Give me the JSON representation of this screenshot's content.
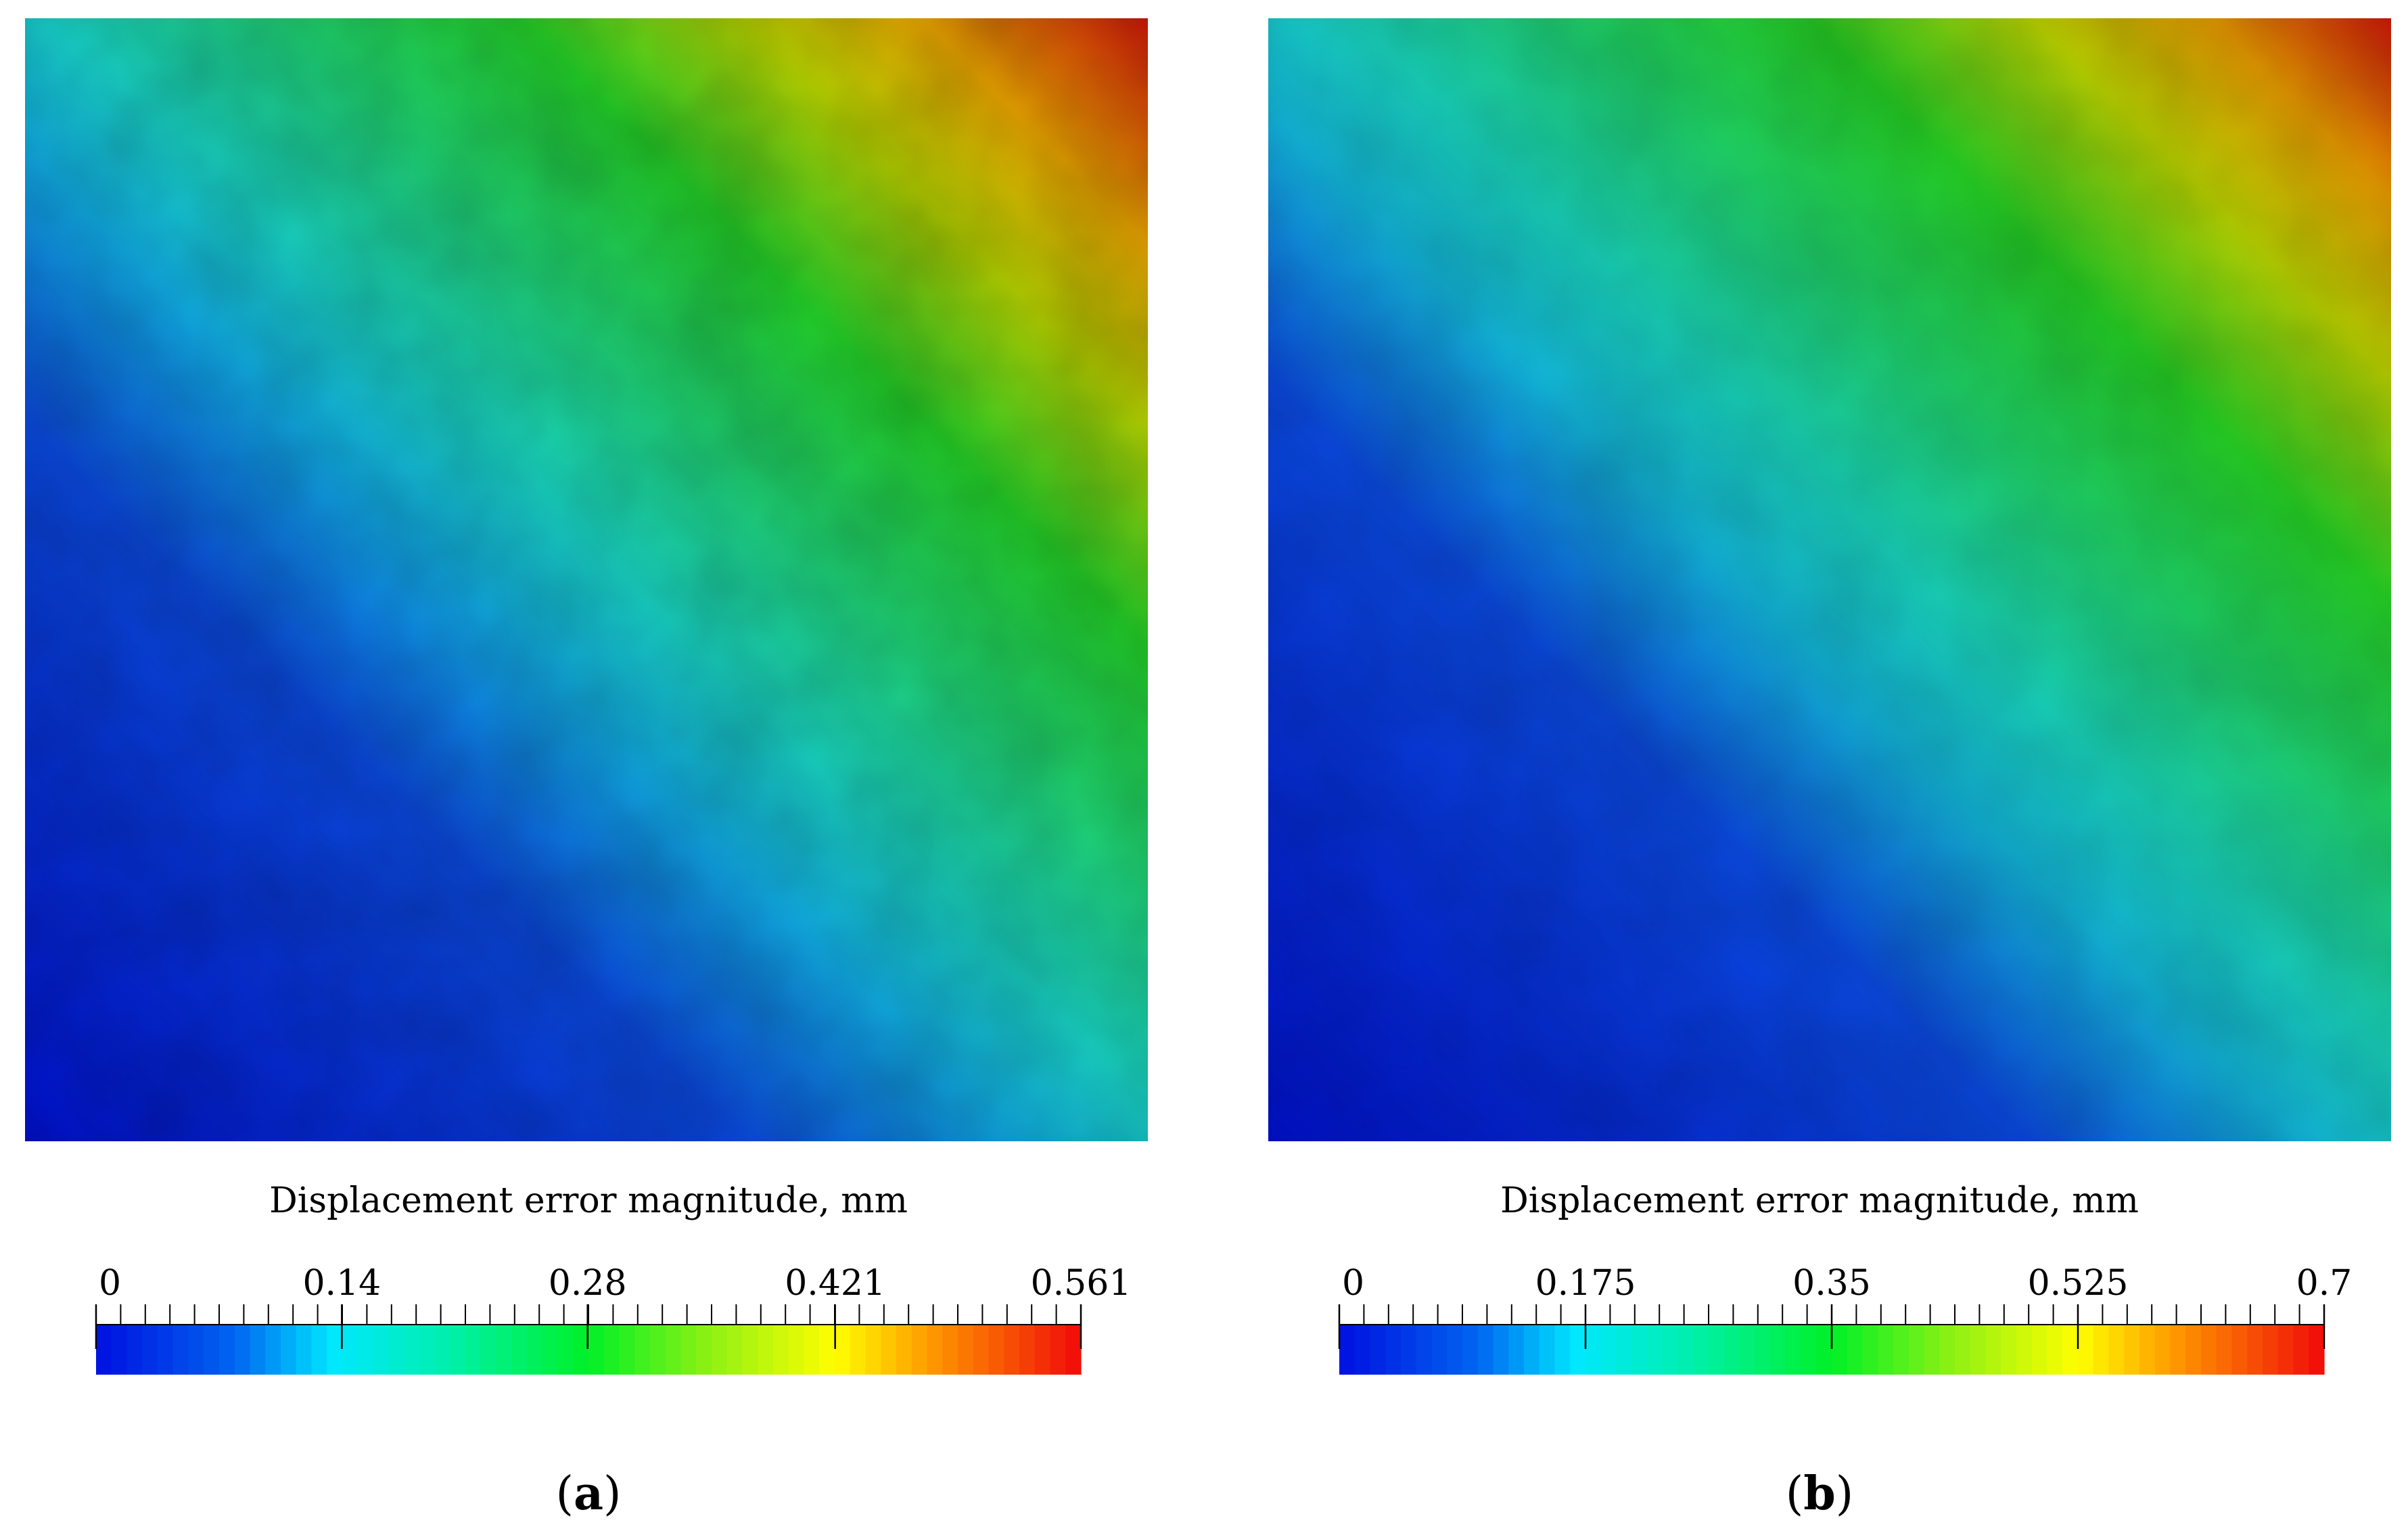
{
  "panels": [
    {
      "id": "a",
      "label": "a",
      "colorbar": {
        "title": "Displacement error magnitude, mm",
        "min": 0,
        "max": 0.561,
        "tick_labels": [
          "0",
          "0.14",
          "0.28",
          "0.421",
          "0.561"
        ],
        "tick_values": [
          0,
          0.14,
          0.28,
          0.421,
          0.561
        ],
        "colormap": "rainbow (blue-cyan-green-yellow-red)"
      },
      "field_map": {
        "description_color_stops": [
          "#0010c8",
          "#0a5ee0",
          "#14c8d8",
          "#1ed46a",
          "#24d41e",
          "#d8d400",
          "#e89a00",
          "#d21c0c"
        ]
      }
    },
    {
      "id": "b",
      "label": "b",
      "colorbar": {
        "title": "Displacement error magnitude, mm",
        "min": 0,
        "max": 0.7,
        "tick_labels": [
          "0",
          "0.175",
          "0.35",
          "0.525",
          "0.7"
        ],
        "tick_values": [
          0,
          0.175,
          0.35,
          0.525,
          0.7
        ],
        "colormap": "rainbow (blue-cyan-green-yellow-red)"
      },
      "field_map": {
        "description_color_stops": [
          "#0010c8",
          "#0a5ee0",
          "#14c8d8",
          "#1ed46a",
          "#24d41e",
          "#d8d400",
          "#e89a00",
          "#d21c0c"
        ]
      }
    }
  ]
}
